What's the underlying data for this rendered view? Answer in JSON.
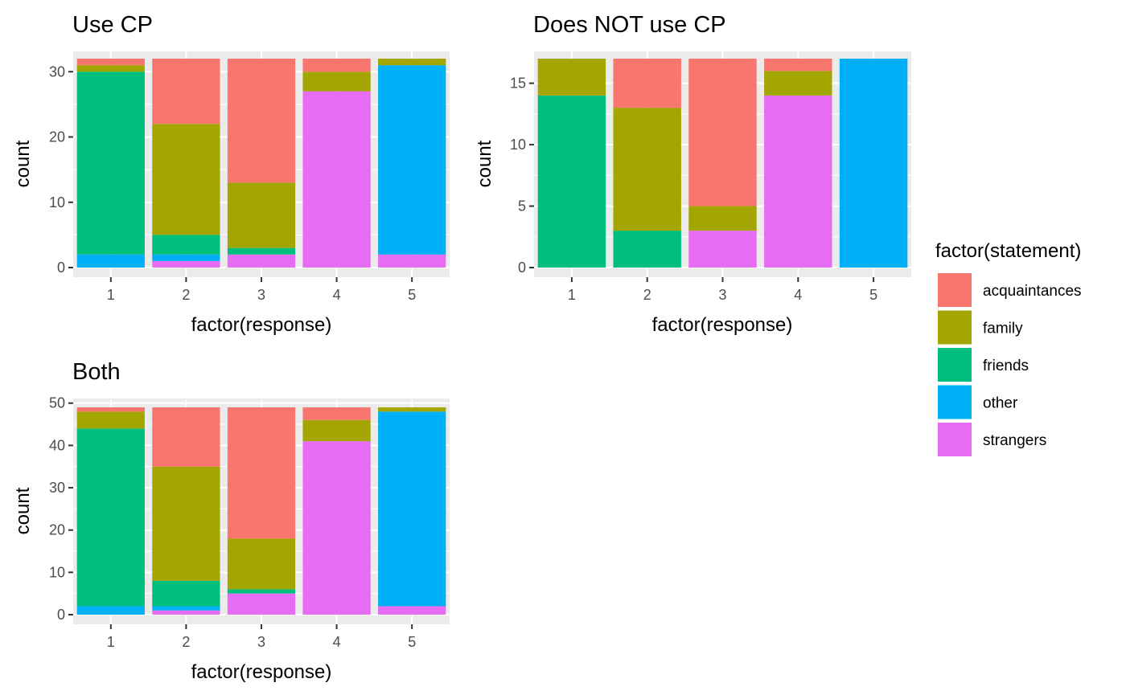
{
  "legend": {
    "title": "factor(statement)",
    "entries": [
      {
        "name": "acquaintances",
        "color": "#F8766D"
      },
      {
        "name": "family",
        "color": "#A3A500"
      },
      {
        "name": "friends",
        "color": "#00BF7D"
      },
      {
        "name": "other",
        "color": "#00B0F6"
      },
      {
        "name": "strangers",
        "color": "#E76BF3"
      }
    ]
  },
  "chart_data": [
    {
      "type": "bar",
      "stacked": true,
      "title": "Use CP",
      "xlabel": "factor(response)",
      "ylabel": "count",
      "categories": [
        "1",
        "2",
        "3",
        "4",
        "5"
      ],
      "ylim": [
        0,
        32
      ],
      "yticks": [
        0,
        10,
        20,
        30
      ],
      "grid": true,
      "series": [
        {
          "name": "acquaintances",
          "values": [
            1,
            10,
            19,
            2,
            0
          ]
        },
        {
          "name": "family",
          "values": [
            1,
            17,
            10,
            3,
            1
          ]
        },
        {
          "name": "friends",
          "values": [
            28,
            3,
            1,
            0,
            0
          ]
        },
        {
          "name": "other",
          "values": [
            2,
            1,
            0,
            0,
            29
          ]
        },
        {
          "name": "strangers",
          "values": [
            0,
            1,
            2,
            27,
            2
          ]
        }
      ]
    },
    {
      "type": "bar",
      "stacked": true,
      "title": "Does NOT use CP",
      "xlabel": "factor(response)",
      "ylabel": "count",
      "categories": [
        "1",
        "2",
        "3",
        "4",
        "5"
      ],
      "ylim": [
        0,
        17
      ],
      "yticks": [
        0,
        5,
        10,
        15
      ],
      "grid": true,
      "series": [
        {
          "name": "acquaintances",
          "values": [
            0,
            4,
            12,
            1,
            0
          ]
        },
        {
          "name": "family",
          "values": [
            3,
            10,
            2,
            2,
            0
          ]
        },
        {
          "name": "friends",
          "values": [
            14,
            3,
            0,
            0,
            0
          ]
        },
        {
          "name": "other",
          "values": [
            0,
            0,
            0,
            0,
            17
          ]
        },
        {
          "name": "strangers",
          "values": [
            0,
            0,
            3,
            14,
            0
          ]
        }
      ]
    },
    {
      "type": "bar",
      "stacked": true,
      "title": "Both",
      "xlabel": "factor(response)",
      "ylabel": "count",
      "categories": [
        "1",
        "2",
        "3",
        "4",
        "5"
      ],
      "ylim": [
        0,
        49
      ],
      "yticks": [
        0,
        10,
        20,
        30,
        40,
        50
      ],
      "grid": true,
      "series": [
        {
          "name": "acquaintances",
          "values": [
            1,
            14,
            31,
            3,
            0
          ]
        },
        {
          "name": "family",
          "values": [
            4,
            27,
            12,
            5,
            1
          ]
        },
        {
          "name": "friends",
          "values": [
            42,
            6,
            1,
            0,
            0
          ]
        },
        {
          "name": "other",
          "values": [
            2,
            1,
            0,
            0,
            46
          ]
        },
        {
          "name": "strangers",
          "values": [
            0,
            1,
            5,
            41,
            2
          ]
        }
      ]
    }
  ]
}
